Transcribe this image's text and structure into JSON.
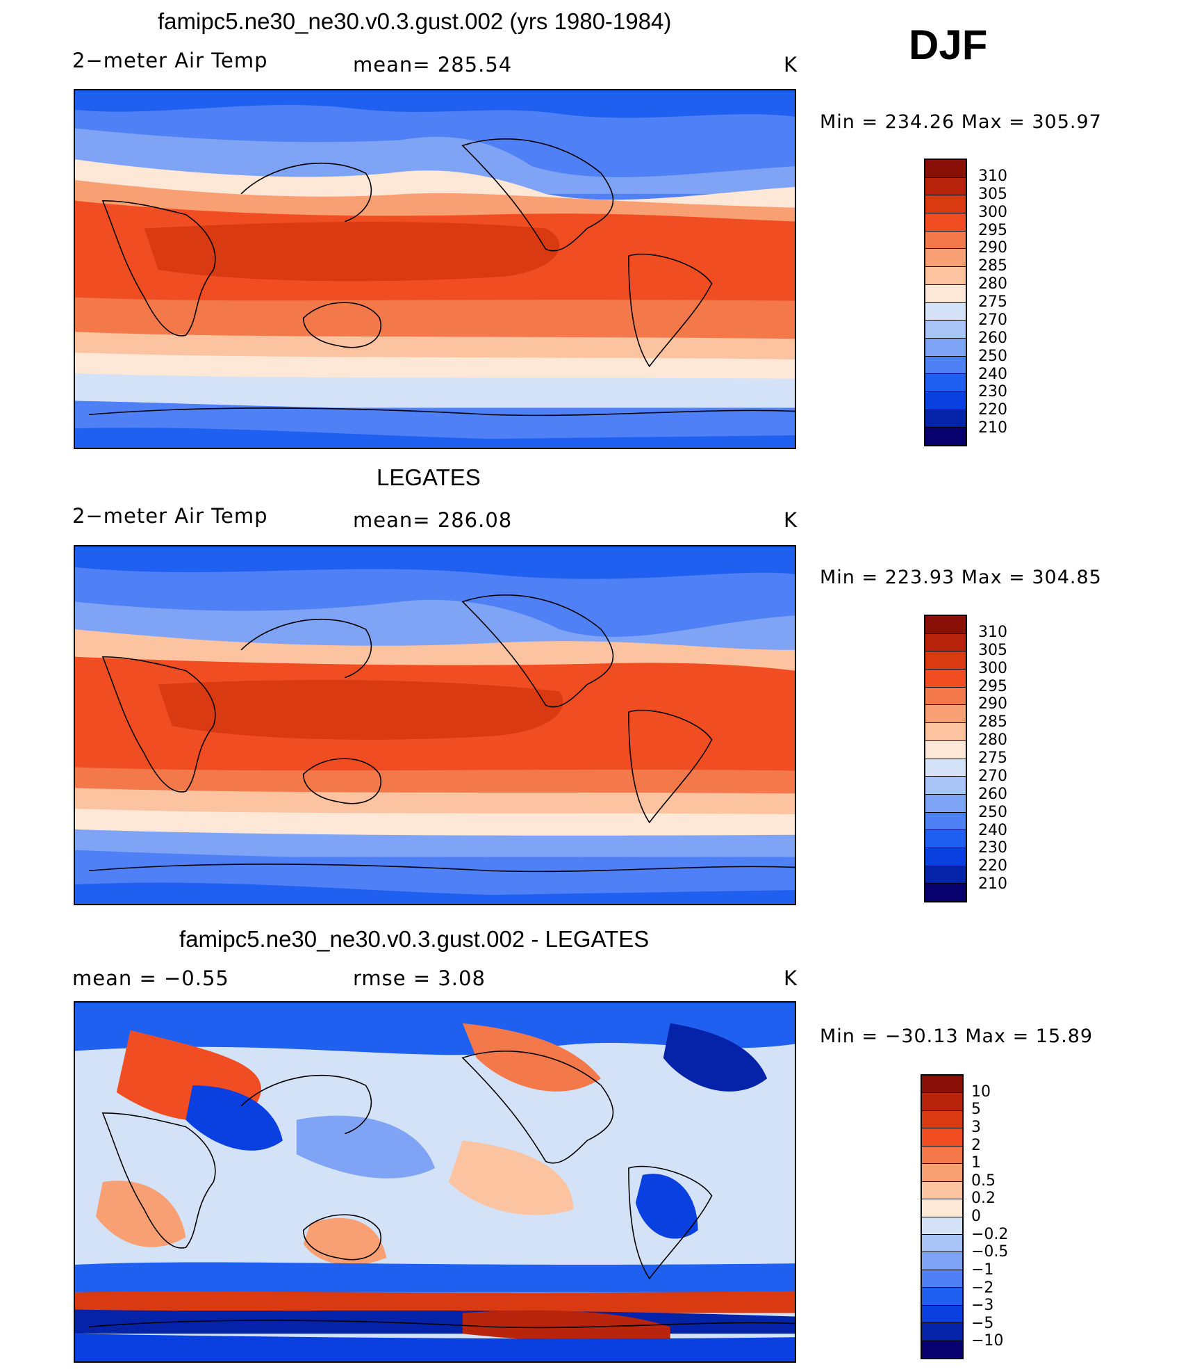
{
  "season": "DJF",
  "colors": {
    "temp_scale": [
      "#08006e",
      "#0523a8",
      "#0a3fe0",
      "#2060f0",
      "#4f80f5",
      "#7fa4f5",
      "#a9c4f7",
      "#d4e2f7",
      "#fde7d6",
      "#fcc3a0",
      "#f8a073",
      "#f4794a",
      "#f04e22",
      "#d93a12",
      "#b8240c",
      "#8a0f06"
    ],
    "diff_scale": [
      "#08006e",
      "#0523a8",
      "#0a3fe0",
      "#2060f0",
      "#4f80f5",
      "#7fa4f5",
      "#a9c4f7",
      "#d4e2f7",
      "#fde7d6",
      "#fcc3a0",
      "#f8a073",
      "#f4794a",
      "#f04e22",
      "#d93a12",
      "#b8240c",
      "#8a0f06"
    ]
  },
  "panels": [
    {
      "title": "famipc5.ne30_ne30.v0.3.gust.002 (yrs 1980-1984)",
      "left_label": "2−meter Air Temp",
      "mid_label": "mean=  285.54",
      "units": "K",
      "stats": "Min  =  234.26  Max  =  305.97",
      "colorbar_labels": [
        "310",
        "305",
        "300",
        "295",
        "290",
        "285",
        "280",
        "275",
        "270",
        "260",
        "250",
        "240",
        "230",
        "220",
        "210"
      ]
    },
    {
      "title": "LEGATES",
      "left_label": "2−meter Air Temp",
      "mid_label": "mean=  286.08",
      "units": "K",
      "stats": "Min  =  223.93  Max  =  304.85",
      "colorbar_labels": [
        "310",
        "305",
        "300",
        "295",
        "290",
        "285",
        "280",
        "275",
        "270",
        "260",
        "250",
        "240",
        "230",
        "220",
        "210"
      ]
    },
    {
      "title": "famipc5.ne30_ne30.v0.3.gust.002 - LEGATES",
      "left_label": "mean  =     −0.55",
      "mid_label": "rmse  =      3.08",
      "units": "K",
      "stats": "Min  =  −30.13  Max  =     15.89",
      "colorbar_labels": [
        "10",
        "5",
        "3",
        "2",
        "1",
        "0.5",
        "0.2",
        "0",
        "−0.2",
        "−0.5",
        "−1",
        "−2",
        "−3",
        "−5",
        "−10"
      ]
    }
  ]
}
